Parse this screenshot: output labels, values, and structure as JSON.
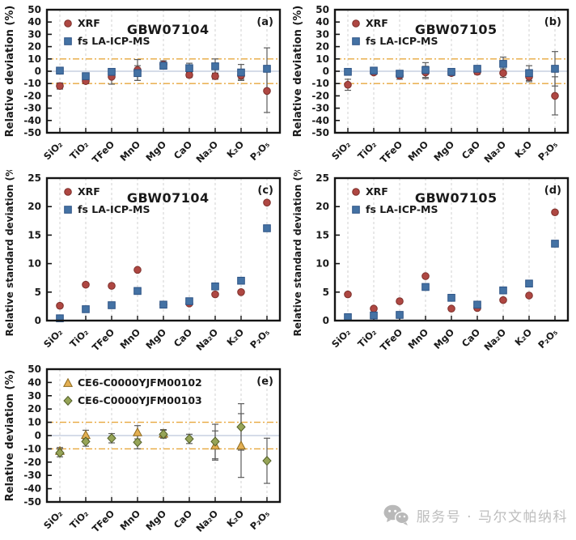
{
  "page": {
    "background": "#ffffff"
  },
  "footer": {
    "label": "服务号 · 马尔文帕纳科",
    "icon": "wechat-service-icon",
    "color": "#bdbdbd"
  },
  "palette": {
    "box": "#141414",
    "text": "#1a1a1a",
    "grid": "#d2d2d2",
    "zero_line": "#bcc8d9",
    "ref_line": "#e8a83e",
    "error_bar": "#5c5c5c"
  },
  "chart_data": [
    {
      "id": "a",
      "type": "scatter",
      "tag": "(a)",
      "title": "GBW07104",
      "ylabel": "Relative deviation (%)",
      "xlabel": "",
      "ylim": [
        -50,
        50
      ],
      "ytick_step": 10,
      "ref_lines": [
        10,
        -10
      ],
      "zero_line": true,
      "grid": "vertical-dashed",
      "legend_position": "top-left",
      "categories": [
        "SiO₂",
        "TiO₂",
        "TFeO",
        "MnO",
        "MgO",
        "CaO",
        "Na₂O",
        "K₂O",
        "P₂O₅"
      ],
      "series": [
        {
          "name": "XRF",
          "marker": "circle",
          "color": "#ae4742",
          "edge": "#7d2f2a",
          "values": [
            -12,
            -8,
            -4.5,
            1,
            5.5,
            -3,
            -4,
            -3.5,
            -16
          ],
          "errors": [
            2.5,
            2,
            6,
            8.5,
            3,
            2,
            2.5,
            3,
            17.5
          ]
        },
        {
          "name": "fs LA-ICP-MS",
          "marker": "square",
          "color": "#4472a4",
          "edge": "#2d5385",
          "values": [
            0.5,
            -4,
            -0.5,
            -1.5,
            4.5,
            2.5,
            4,
            -1,
            2
          ],
          "errors": [
            1,
            1.5,
            2.5,
            6,
            2,
            4,
            6,
            6.5,
            17
          ]
        }
      ]
    },
    {
      "id": "b",
      "type": "scatter",
      "tag": "(b)",
      "title": "GBW07105",
      "ylabel": "Relative deviation (%)",
      "xlabel": "",
      "ylim": [
        -50,
        50
      ],
      "ytick_step": 10,
      "ref_lines": [
        10,
        -10
      ],
      "zero_line": true,
      "grid": "vertical-dashed",
      "legend_position": "top-left",
      "categories": [
        "SiO₂",
        "TiO₂",
        "TFeO",
        "MnO",
        "MgO",
        "CaO",
        "Na₂O",
        "K₂O",
        "P₂O₅"
      ],
      "series": [
        {
          "name": "XRF",
          "marker": "circle",
          "color": "#ae4742",
          "edge": "#7d2f2a",
          "values": [
            -11,
            -1,
            -3.5,
            -1,
            -1.5,
            -0.5,
            -1.5,
            -4.5,
            -20
          ],
          "errors": [
            4.5,
            1.5,
            3,
            5,
            2,
            2,
            3.5,
            4,
            15.5
          ]
        },
        {
          "name": "fs LA-ICP-MS",
          "marker": "square",
          "color": "#4472a4",
          "edge": "#2d5385",
          "values": [
            -0.5,
            0.5,
            -2,
            1,
            -0.5,
            2,
            6,
            -1.5,
            2
          ],
          "errors": [
            1,
            1.5,
            2,
            6,
            2.5,
            2.5,
            5.5,
            6,
            14
          ]
        }
      ]
    },
    {
      "id": "c",
      "type": "scatter",
      "tag": "(c)",
      "title": "GBW07104",
      "ylabel": "Relative standard deviation (%)",
      "xlabel": "",
      "ylim": [
        0,
        25
      ],
      "ytick_step": 5,
      "ref_lines": [],
      "zero_line": false,
      "grid": "vertical-dashed",
      "legend_position": "top-left",
      "categories": [
        "SiO₂",
        "TiO₂",
        "TFeO",
        "MnO",
        "MgO",
        "CaO",
        "Na₂O",
        "K₂O",
        "P₂O₅"
      ],
      "series": [
        {
          "name": "XRF",
          "marker": "circle",
          "color": "#ae4742",
          "edge": "#7d2f2a",
          "values": [
            2.6,
            6.3,
            6.1,
            8.9,
            2.8,
            3.0,
            4.6,
            5.0,
            20.7
          ]
        },
        {
          "name": "fs LA-ICP-MS",
          "marker": "square",
          "color": "#4472a4",
          "edge": "#2d5385",
          "values": [
            0.4,
            2.0,
            2.7,
            5.2,
            2.8,
            3.4,
            6.0,
            7.0,
            16.2
          ]
        }
      ]
    },
    {
      "id": "d",
      "type": "scatter",
      "tag": "(d)",
      "title": "GBW07105",
      "ylabel": "Relative standard deviation (%)",
      "xlabel": "",
      "ylim": [
        0,
        25
      ],
      "ytick_step": 5,
      "ref_lines": [],
      "zero_line": false,
      "grid": "vertical-dashed",
      "legend_position": "top-left",
      "categories": [
        "SiO₂",
        "TiO₂",
        "TFeO",
        "MnO",
        "MgO",
        "CaO",
        "Na₂O",
        "K₂O",
        "P₂O₅"
      ],
      "series": [
        {
          "name": "XRF",
          "marker": "circle",
          "color": "#ae4742",
          "edge": "#7d2f2a",
          "values": [
            4.6,
            2.1,
            3.4,
            7.8,
            2.1,
            2.2,
            3.6,
            4.4,
            19.0
          ]
        },
        {
          "name": "fs LA-ICP-MS",
          "marker": "square",
          "color": "#4472a4",
          "edge": "#2d5385",
          "values": [
            0.6,
            0.9,
            1.0,
            5.9,
            4.0,
            2.8,
            5.3,
            6.5,
            13.5
          ]
        }
      ]
    },
    {
      "id": "e",
      "type": "scatter",
      "tag": "(e)",
      "title": "",
      "ylabel": "Relative deviation (%)",
      "xlabel": "",
      "ylim": [
        -50,
        50
      ],
      "ytick_step": 10,
      "ref_lines": [
        10,
        -10
      ],
      "zero_line": true,
      "grid": "vertical-dashed",
      "legend_position": "top-left",
      "categories": [
        "SiO₂",
        "TiO₂",
        "TFeO",
        "MnO",
        "MgO",
        "CaO",
        "Na₂O",
        "K₂O",
        "P₂O₅"
      ],
      "series": [
        {
          "name": "CE6-C0000YJFM00102",
          "marker": "triangle",
          "color": "#e3af53",
          "edge": "#8f6b1e",
          "values": [
            -11.5,
            0.5,
            null,
            2.5,
            1.5,
            null,
            -7.5,
            -7.5,
            null
          ],
          "errors": [
            2.5,
            3.5,
            null,
            5,
            3,
            null,
            11,
            24,
            null
          ]
        },
        {
          "name": "CE6-C0000YJFM00103",
          "marker": "diamond",
          "color": "#96a457",
          "edge": "#535f29",
          "values": [
            -13,
            -4.5,
            -2,
            -5,
            1,
            -2.5,
            -4.5,
            6.5,
            -19
          ],
          "errors": [
            3,
            3.5,
            3.5,
            5,
            3,
            3.5,
            13,
            17.5,
            17
          ]
        }
      ]
    }
  ]
}
